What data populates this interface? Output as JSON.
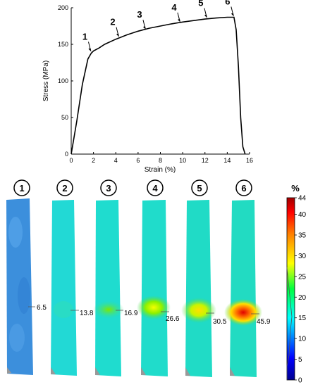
{
  "chart_data": [
    {
      "type": "line",
      "xlabel": "Strain (%)",
      "ylabel": "Stress (MPa)",
      "xlim": [
        0,
        16
      ],
      "ylim": [
        0,
        200
      ],
      "xticks": [
        "0",
        "2",
        "4",
        "6",
        "8",
        "10",
        "12",
        "14",
        "16"
      ],
      "yticks": [
        "0",
        "50",
        "100",
        "150",
        "200"
      ],
      "grid": false,
      "series": [
        {
          "x": [
            0,
            0.5,
            1.0,
            1.5,
            1.8,
            2.0,
            2.5,
            3,
            4,
            5,
            6,
            7,
            8,
            9,
            10,
            11,
            12,
            13,
            14,
            14.6,
            14.8,
            15.0,
            15.2,
            15.4,
            15.6
          ],
          "y": [
            0,
            45,
            95,
            130,
            138,
            141,
            145,
            150,
            157,
            163,
            168,
            172,
            175,
            178,
            180.5,
            182.5,
            184.5,
            186,
            187,
            187,
            170,
            120,
            50,
            10,
            0
          ]
        }
      ],
      "annotations": [
        {
          "label": "1",
          "x": 1.8,
          "y": 139
        },
        {
          "label": "2",
          "x": 4.3,
          "y": 159
        },
        {
          "label": "3",
          "x": 6.7,
          "y": 169
        },
        {
          "label": "4",
          "x": 9.8,
          "y": 179
        },
        {
          "label": "5",
          "x": 12.2,
          "y": 185
        },
        {
          "label": "6",
          "x": 14.6,
          "y": 187
        }
      ]
    },
    {
      "type": "heatmap",
      "panels": [
        {
          "label": "1",
          "peak_value": "6.5"
        },
        {
          "label": "2",
          "peak_value": "13.8"
        },
        {
          "label": "3",
          "peak_value": "16.9"
        },
        {
          "label": "4",
          "peak_value": "26.6"
        },
        {
          "label": "5",
          "peak_value": "30.5"
        },
        {
          "label": "6",
          "peak_value": "45.9"
        }
      ],
      "colorbar": {
        "title": "%",
        "min": 0,
        "max": 44,
        "ticks": [
          "0",
          "5",
          "10",
          "15",
          "20",
          "25",
          "30",
          "35",
          "40",
          "44"
        ]
      }
    }
  ]
}
